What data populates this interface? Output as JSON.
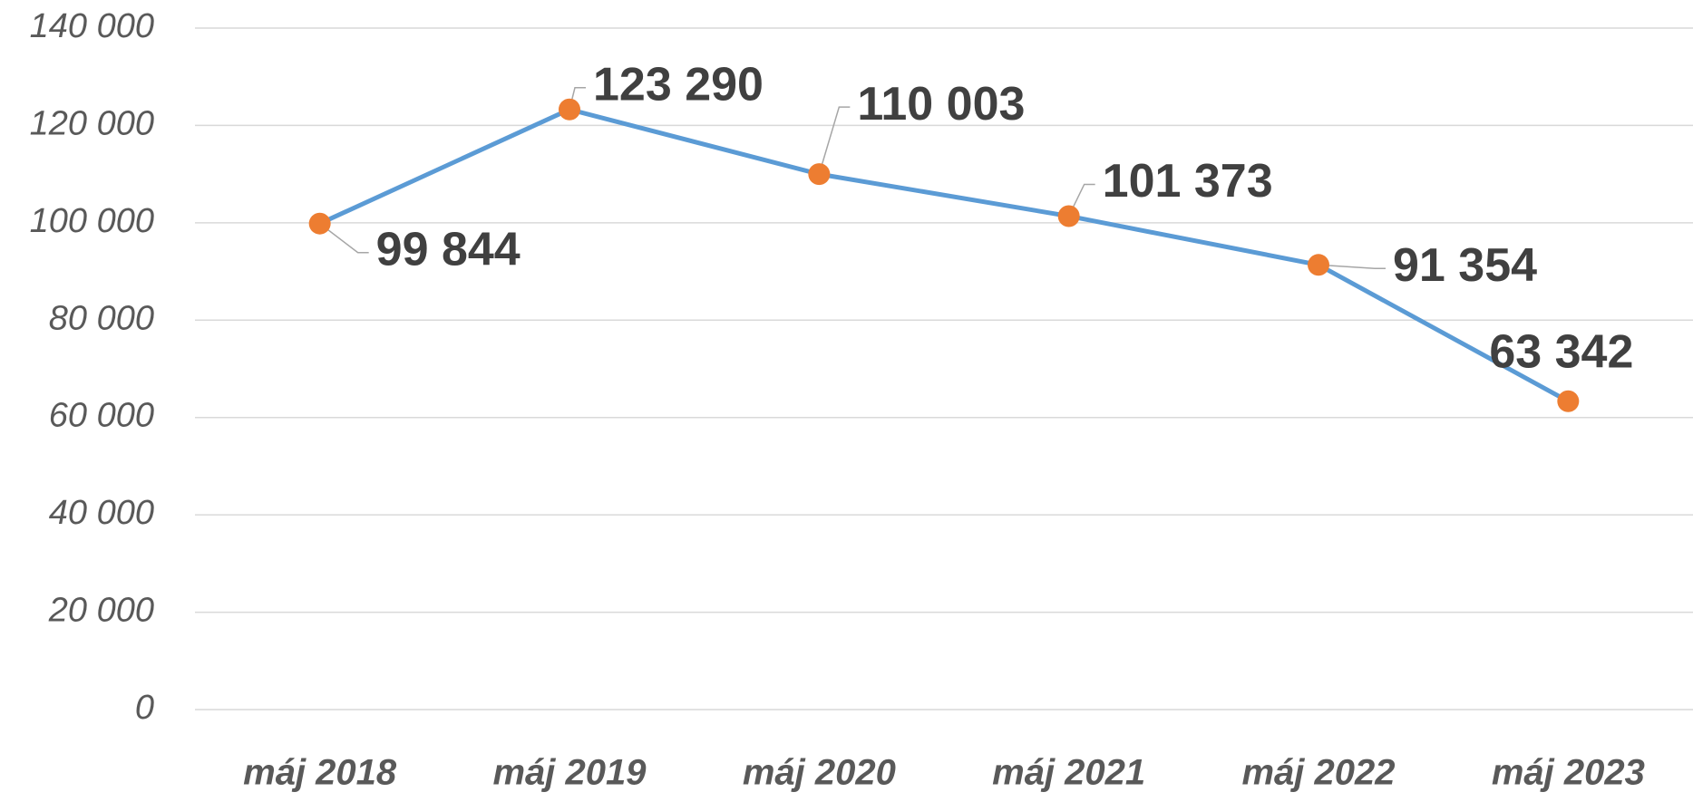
{
  "chart_data": {
    "type": "line",
    "categories": [
      "máj 2018",
      "máj 2019",
      "máj 2020",
      "máj 2021",
      "máj 2022",
      "máj 2023"
    ],
    "series": [
      {
        "name": "",
        "color": "#5b9bd5",
        "marker_color": "#ed7d31",
        "values": [
          99844,
          123290,
          110003,
          101373,
          91354,
          63342
        ],
        "value_labels": [
          "99 844",
          "123 290",
          "110 003",
          "101 373",
          "91 354",
          "63 342"
        ]
      }
    ],
    "ylim": [
      0,
      140000
    ],
    "yticks": [
      0,
      {
        "value": 20000,
        "label": "20 000"
      },
      {
        "value": 40000,
        "label": "40 000"
      },
      {
        "value": 60000,
        "label": "60 000"
      },
      {
        "value": 80000,
        "label": "80 000"
      },
      {
        "value": 100000,
        "label": "100 000"
      },
      {
        "value": 120000,
        "label": "120 000"
      },
      {
        "value": 140000,
        "label": "140 000"
      }
    ],
    "grid": true
  }
}
